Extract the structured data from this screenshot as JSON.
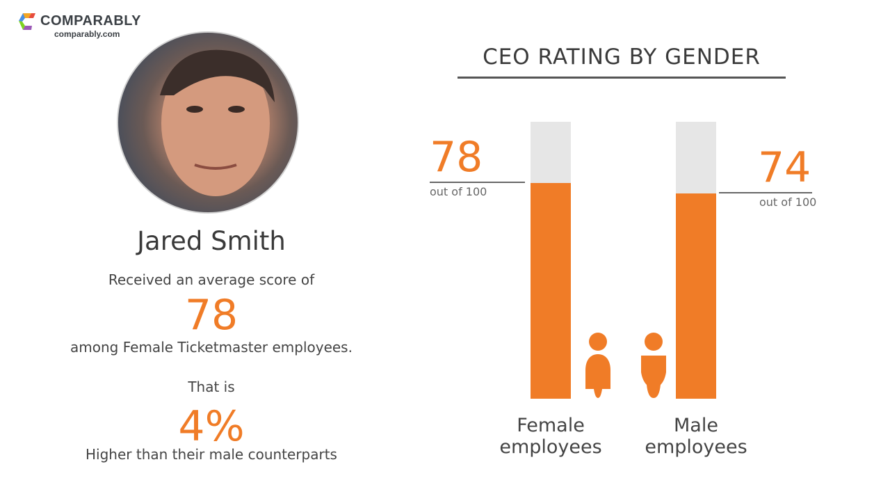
{
  "brand": {
    "name": "COMPARABLY",
    "url": "comparably.com"
  },
  "person": {
    "name": "Jared Smith"
  },
  "summary": {
    "line1": "Received an average score of",
    "score": "78",
    "line2": "among Female Ticketmaster employees.",
    "line3": "That is",
    "percent": "4%",
    "line4": "Higher than their male counterparts"
  },
  "colors": {
    "accent": "#f07c27",
    "track": "#e6e6e6"
  },
  "chart_data": {
    "type": "bar",
    "title": "CEO RATING BY GENDER",
    "categories": [
      "Female employees",
      "Male employees"
    ],
    "values": [
      78,
      74
    ],
    "ylim": [
      0,
      100
    ],
    "value_labels": [
      "78",
      "74"
    ],
    "sublabels": [
      "out of 100",
      "out of 100"
    ],
    "cat_lines": [
      [
        "Female",
        "employees"
      ],
      [
        "Male",
        "employees"
      ]
    ],
    "icons": [
      "female-person-icon",
      "male-person-icon"
    ],
    "grid": false
  }
}
